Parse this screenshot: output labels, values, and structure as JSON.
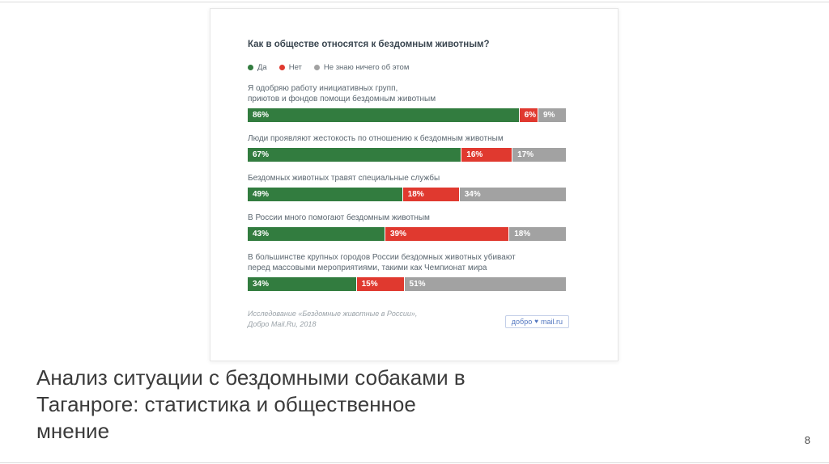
{
  "slide": {
    "title": "Анализ ситуации с бездомными собаками в\nТаганроге: статистика и общественное\nмнение",
    "page_number": "8"
  },
  "chart": {
    "title": "Как в обществе относятся к бездомным животным?",
    "source": "Исследование «Бездомные животные в России»,\nДобро Mail.Ru, 2018",
    "logo": {
      "prefix": "добро",
      "heart_icon": "♥",
      "suffix": "mail.ru"
    }
  },
  "chart_data": {
    "type": "bar",
    "orientation": "horizontal",
    "stacked": true,
    "title": "Как в обществе относятся к бездомным животным?",
    "value_suffix": "%",
    "xlim": [
      0,
      100
    ],
    "legend_position": "top",
    "categories": [
      "Я одобряю работу инициативных групп,\nприютов и фондов помощи бездомным животным",
      "Люди проявляют жестокость по отношению к бездомным животным",
      "Бездомных животных травят специальные службы",
      "В России много помогают бездомным животным",
      "В большинстве крупных городов России бездомных животных убивают\nперед массовыми мероприятиями, такими как Чемпионат мира"
    ],
    "series": [
      {
        "name": "Да",
        "color": "#327c3f",
        "values": [
          86,
          67,
          49,
          43,
          34
        ]
      },
      {
        "name": "Нет",
        "color": "#e0392f",
        "values": [
          6,
          16,
          18,
          39,
          15
        ]
      },
      {
        "name": "Не знаю ничего об этом",
        "color": "#a2a2a2",
        "values": [
          9,
          17,
          34,
          18,
          51
        ]
      }
    ]
  }
}
